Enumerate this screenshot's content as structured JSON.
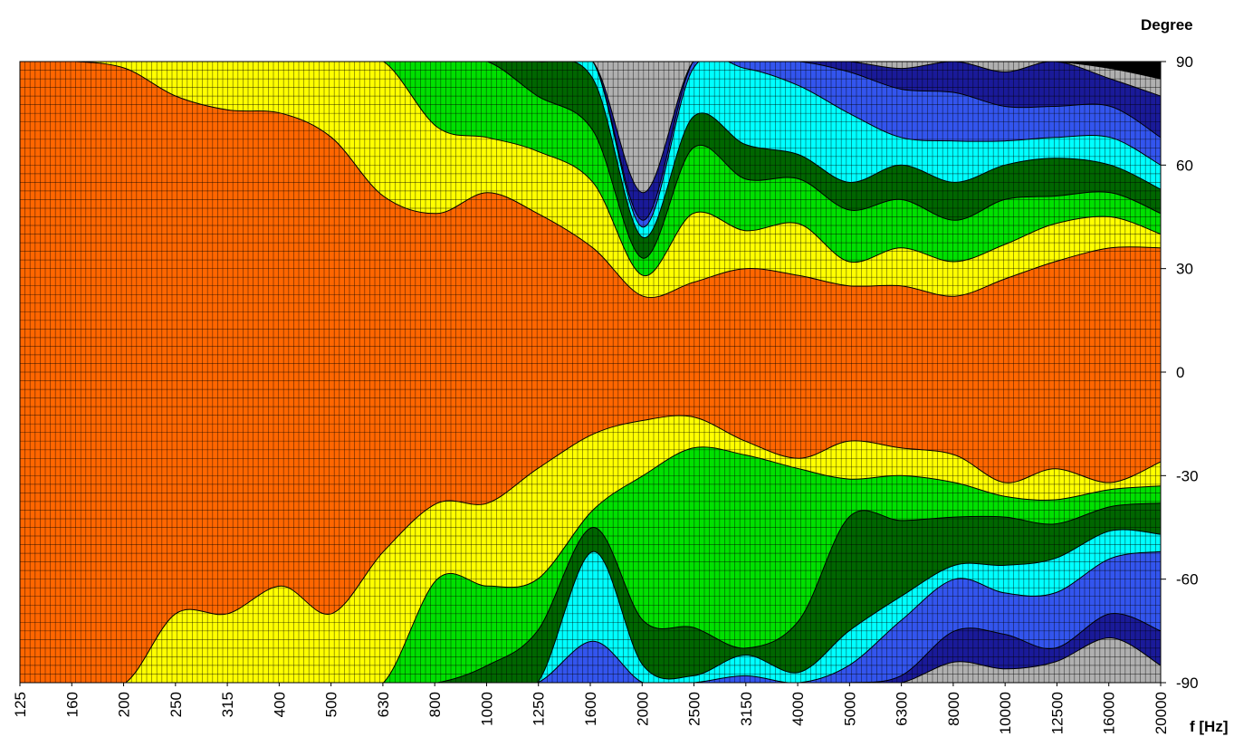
{
  "chart_data": {
    "type": "heatmap",
    "title": "",
    "xlabel": "f [Hz]",
    "ylabel": "Degree",
    "x_scale": "log",
    "x_ticks": [
      "125",
      "160",
      "200",
      "250",
      "315",
      "400",
      "500",
      "630",
      "800",
      "1000",
      "1250",
      "1600",
      "2000",
      "2500",
      "3150",
      "4000",
      "5000",
      "6300",
      "8000",
      "10000",
      "12500",
      "16000",
      "20000"
    ],
    "y_ticks": [
      "90",
      "60",
      "30",
      "0",
      "-30",
      "-60",
      "-90"
    ],
    "xlim": [
      125,
      20000
    ],
    "ylim": [
      -90,
      90
    ],
    "grid": true,
    "legend": "none",
    "level_colors": [
      "#ff6600",
      "#ffff00",
      "#00e000",
      "#006600",
      "#00ffff",
      "#3355ee",
      "#1a1a99",
      "#b0b0b0"
    ],
    "upper_contours": {
      "x": [
        125,
        160,
        200,
        250,
        315,
        400,
        500,
        630,
        800,
        1000,
        1250,
        1600,
        2000,
        2500,
        3150,
        4000,
        5000,
        6300,
        8000,
        10000,
        12500,
        16000,
        20000
      ],
      "boundaries": [
        [
          90,
          90,
          88,
          80,
          76,
          75,
          68,
          51,
          46,
          52,
          46,
          36,
          22,
          26,
          30,
          28,
          25,
          25,
          22,
          27,
          32,
          36,
          36
        ],
        [
          90,
          90,
          90,
          90,
          90,
          90,
          90,
          90,
          71,
          68,
          64,
          55,
          28,
          46,
          41,
          43,
          32,
          36,
          32,
          37,
          43,
          45,
          40
        ],
        [
          90,
          90,
          90,
          90,
          90,
          90,
          90,
          90,
          90,
          90,
          80,
          70,
          33,
          65,
          56,
          56,
          47,
          50,
          44,
          50,
          51,
          52,
          46
        ],
        [
          90,
          90,
          90,
          90,
          90,
          90,
          90,
          90,
          90,
          90,
          90,
          85,
          39,
          74,
          66,
          63,
          55,
          60,
          55,
          60,
          62,
          60,
          53
        ],
        [
          90,
          90,
          90,
          90,
          90,
          90,
          90,
          90,
          90,
          90,
          90,
          90,
          42,
          88,
          88,
          83,
          75,
          68,
          67,
          67,
          68,
          68,
          60
        ],
        [
          90,
          90,
          90,
          90,
          90,
          90,
          90,
          90,
          90,
          90,
          90,
          90,
          44,
          90,
          90,
          90,
          87,
          82,
          81,
          77,
          77,
          77,
          68
        ],
        [
          90,
          90,
          90,
          90,
          90,
          90,
          90,
          90,
          90,
          90,
          90,
          90,
          52,
          90,
          90,
          90,
          90,
          88,
          90,
          87,
          90,
          85,
          80
        ],
        [
          90,
          90,
          90,
          90,
          90,
          90,
          90,
          90,
          90,
          90,
          90,
          90,
          90,
          90,
          90,
          90,
          90,
          90,
          90,
          90,
          90,
          88,
          85
        ]
      ]
    },
    "lower_contours": {
      "x": [
        125,
        160,
        200,
        250,
        315,
        400,
        500,
        630,
        800,
        1000,
        1250,
        1600,
        2000,
        2500,
        3150,
        4000,
        5000,
        6300,
        8000,
        10000,
        12500,
        16000,
        20000
      ],
      "boundaries": [
        [
          -90,
          -90,
          -90,
          -70,
          -70,
          -62,
          -70,
          -52,
          -38,
          -38,
          -28,
          -18,
          -14,
          -13,
          -20,
          -25,
          -20,
          -22,
          -24,
          -32,
          -28,
          -32,
          -26
        ],
        [
          -90,
          -90,
          -90,
          -90,
          -90,
          -90,
          -90,
          -90,
          -60,
          -62,
          -60,
          -40,
          -30,
          -22,
          -24,
          -28,
          -31,
          -30,
          -32,
          -36,
          -37,
          -34,
          -33
        ],
        [
          -90,
          -90,
          -90,
          -90,
          -90,
          -90,
          -90,
          -90,
          -90,
          -85,
          -75,
          -45,
          -72,
          -74,
          -80,
          -72,
          -42,
          -43,
          -42,
          -42,
          -44,
          -39,
          -38
        ],
        [
          -90,
          -90,
          -90,
          -90,
          -90,
          -90,
          -90,
          -90,
          -90,
          -90,
          -90,
          -52,
          -85,
          -88,
          -82,
          -87,
          -75,
          -65,
          -56,
          -56,
          -54,
          -46,
          -47
        ],
        [
          -90,
          -90,
          -90,
          -90,
          -90,
          -90,
          -90,
          -90,
          -90,
          -90,
          -90,
          -78,
          -90,
          -90,
          -88,
          -90,
          -85,
          -72,
          -60,
          -64,
          -64,
          -54,
          -52
        ],
        [
          -90,
          -90,
          -90,
          -90,
          -90,
          -90,
          -90,
          -90,
          -90,
          -90,
          -90,
          -90,
          -90,
          -90,
          -90,
          -90,
          -90,
          -88,
          -75,
          -76,
          -80,
          -70,
          -75
        ],
        [
          -90,
          -90,
          -90,
          -90,
          -90,
          -90,
          -90,
          -90,
          -90,
          -90,
          -90,
          -90,
          -90,
          -90,
          -90,
          -90,
          -90,
          -90,
          -84,
          -86,
          -84,
          -77,
          -85
        ]
      ]
    }
  }
}
